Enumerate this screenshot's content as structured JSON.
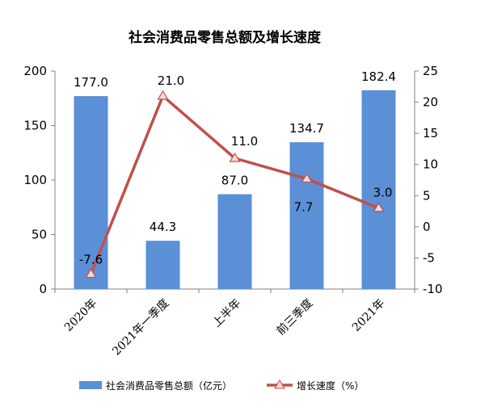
{
  "chart_data": {
    "type": "bar",
    "title": "社会消费品零售总额及增长速度",
    "categories": [
      "2020年",
      "2021年一季度",
      "上半年",
      "前三季度",
      "2021年"
    ],
    "series": [
      {
        "name": "社会消费品零售总额（亿元）",
        "type": "bar",
        "axis": "left",
        "color": "#5b8fd6",
        "values": [
          177.0,
          44.3,
          87.0,
          134.7,
          182.4
        ],
        "labels": [
          "177.0",
          "44.3",
          "87.0",
          "134.7",
          "182.4"
        ]
      },
      {
        "name": "增长速度（%）",
        "type": "line",
        "axis": "right",
        "color": "#c0504d",
        "values": [
          -7.6,
          21.0,
          11.0,
          7.7,
          3.0
        ],
        "labels": [
          "-7.6",
          "21.0",
          "11.0",
          "7.7",
          "3.0"
        ]
      }
    ],
    "y_left": {
      "min": 0,
      "max": 200,
      "ticks": [
        "0",
        "50",
        "100",
        "150",
        "200"
      ]
    },
    "y_right": {
      "min": -10,
      "max": 25,
      "ticks": [
        "-10",
        "-5",
        "0",
        "5",
        "10",
        "15",
        "20",
        "25"
      ]
    },
    "grid": false,
    "legend_position": "bottom"
  }
}
